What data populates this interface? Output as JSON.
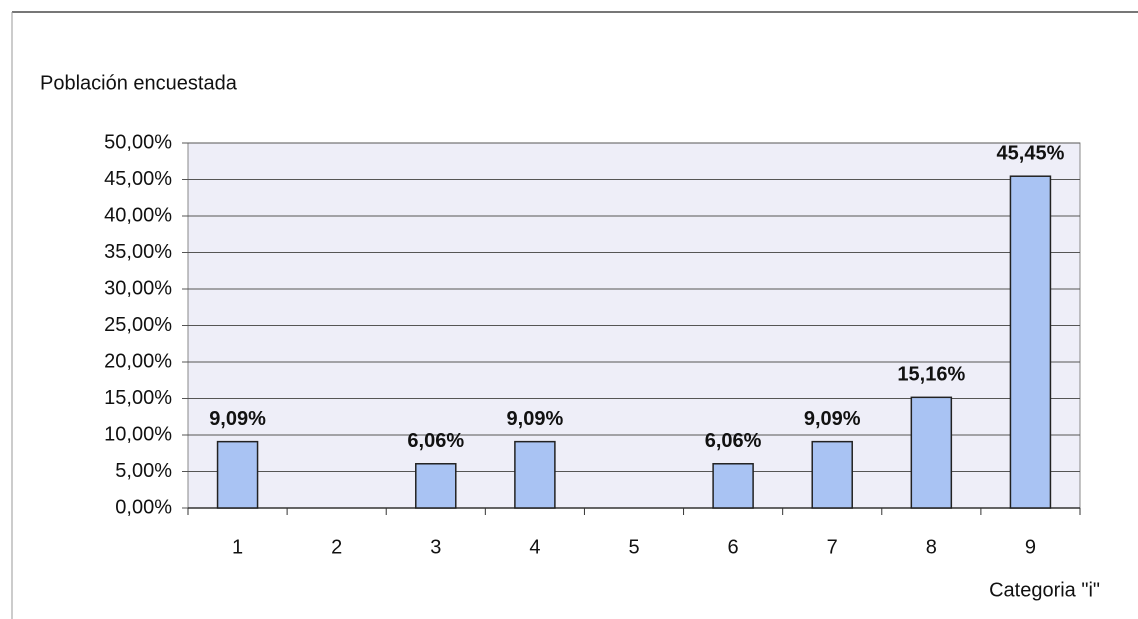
{
  "chart_data": {
    "type": "bar",
    "title": "Población encuestada",
    "x_label": "Categoria \"i\"",
    "categories": [
      "1",
      "2",
      "3",
      "4",
      "5",
      "6",
      "7",
      "8",
      "9"
    ],
    "values": [
      9.09,
      0,
      6.06,
      9.09,
      0,
      6.06,
      9.09,
      15.16,
      45.45
    ],
    "value_labels": [
      "9,09%",
      null,
      "6,06%",
      "9,09%",
      null,
      "6,06%",
      "9,09%",
      "15,16%",
      "45,45%"
    ],
    "color": "#a9c3f3",
    "ylim": [
      0,
      50
    ],
    "yticks": [
      {
        "value": 0,
        "label": "0,00%"
      },
      {
        "value": 5,
        "label": "5,00%"
      },
      {
        "value": 10,
        "label": "10,00%"
      },
      {
        "value": 15,
        "label": "15,00%"
      },
      {
        "value": 20,
        "label": "20,00%"
      },
      {
        "value": 25,
        "label": "25,00%"
      },
      {
        "value": 30,
        "label": "30,00%"
      },
      {
        "value": 35,
        "label": "35,00%"
      },
      {
        "value": 40,
        "label": "40,00%"
      },
      {
        "value": 45,
        "label": "45,00%"
      },
      {
        "value": 50,
        "label": "50,00%"
      }
    ],
    "grid": true
  }
}
